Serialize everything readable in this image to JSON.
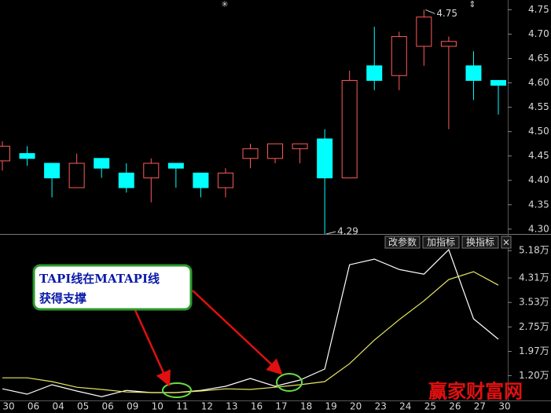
{
  "chart_data": [
    {
      "type": "candlestick",
      "categories": [
        "30",
        "06",
        "04",
        "05",
        "06",
        "09",
        "10",
        "11",
        "12",
        "13",
        "16",
        "17",
        "18",
        "19",
        "20",
        "23",
        "24",
        "25",
        "26",
        "27",
        "30"
      ],
      "open": [
        4.44,
        4.455,
        4.435,
        4.385,
        4.445,
        4.415,
        4.405,
        4.435,
        4.415,
        4.385,
        4.445,
        4.445,
        4.465,
        4.485,
        4.405,
        4.635,
        4.615,
        4.675,
        4.675,
        4.635,
        4.605
      ],
      "high": [
        4.48,
        4.47,
        4.435,
        4.455,
        4.445,
        4.435,
        4.445,
        4.435,
        4.415,
        4.425,
        4.475,
        4.475,
        4.475,
        4.505,
        4.625,
        4.715,
        4.705,
        4.75,
        4.695,
        4.665,
        4.605
      ],
      "low": [
        4.42,
        4.43,
        4.365,
        4.385,
        4.405,
        4.375,
        4.355,
        4.385,
        4.365,
        4.365,
        4.425,
        4.435,
        4.435,
        4.29,
        4.405,
        4.585,
        4.585,
        4.635,
        4.505,
        4.565,
        4.535
      ],
      "close": [
        4.47,
        4.445,
        4.405,
        4.435,
        4.425,
        4.385,
        4.435,
        4.425,
        4.385,
        4.415,
        4.465,
        4.475,
        4.475,
        4.405,
        4.605,
        4.605,
        4.695,
        4.735,
        4.685,
        4.605,
        4.595
      ],
      "up_color": "#ff5a5a",
      "down_color": "#00ffff",
      "ylim": [
        4.29,
        4.77
      ],
      "yticks": [
        {
          "value": 4.3,
          "label": "4.30"
        },
        4.35,
        {
          "value": 4.4,
          "label": "4.40"
        },
        4.45,
        {
          "value": 4.5,
          "label": "4.50"
        },
        4.55,
        {
          "value": 4.6,
          "label": "4.60"
        },
        4.65,
        {
          "value": 4.7,
          "label": "4.70"
        },
        4.75
      ]
    },
    {
      "type": "line",
      "series": [
        {
          "color": "#ffffff",
          "values": [
            0.78,
            0.61,
            0.91,
            0.71,
            0.53,
            0.73,
            0.66,
            0.66,
            0.73,
            0.86,
            1.11,
            0.86,
            1.06,
            1.41,
            4.73,
            4.91,
            4.58,
            4.43,
            5.21,
            3.01,
            2.36
          ]
        },
        {
          "color": "#e8e860",
          "values": [
            1.13,
            1.13,
            1.01,
            0.83,
            0.76,
            0.68,
            0.66,
            0.66,
            0.71,
            0.78,
            0.76,
            0.83,
            0.91,
            1.01,
            1.58,
            2.33,
            2.98,
            3.58,
            4.26,
            4.51,
            4.08
          ]
        }
      ],
      "ylim": [
        0.41,
        5.66
      ],
      "yticks": [
        {
          "value": 1.2,
          "label": "1.20万"
        },
        {
          "value": 1.97,
          "label": "1.97万"
        },
        {
          "value": 2.75,
          "label": "2.75万"
        },
        {
          "value": 3.53,
          "label": "3.53万"
        },
        {
          "value": 4.31,
          "label": "4.31万"
        },
        {
          "value": 5.18,
          "label": "5.18万"
        }
      ],
      "buttons": [
        "改参数",
        "加指标",
        "换指标",
        "×"
      ],
      "annotation": [
        "TAPI线在MATAPI线",
        "获得支撑"
      ]
    }
  ],
  "watermark": "赢家财富网"
}
